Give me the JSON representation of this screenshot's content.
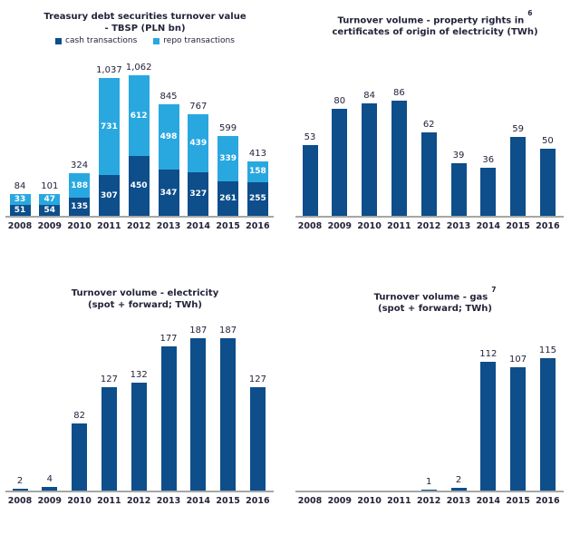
{
  "colors": {
    "dark_blue": "#0d4e8b",
    "light_blue": "#29a8e0",
    "axis_line": "#a6a6a6",
    "text": "#23233a"
  },
  "chart_data": [
    {
      "type": "bar",
      "stacked": true,
      "title_lines": [
        "Treasury debt securities turnover value",
        "- TBSP (PLN bn)"
      ],
      "footnote": "",
      "legend_position": "top",
      "grid": false,
      "categories": [
        "2008",
        "2009",
        "2010",
        "2011",
        "2012",
        "2013",
        "2014",
        "2015",
        "2016"
      ],
      "series": [
        {
          "name": "cash transactions",
          "color_key": "dark_blue",
          "values": [
            51,
            54,
            135,
            307,
            450,
            347,
            327,
            261,
            255
          ],
          "labels": [
            "51",
            "54",
            "135",
            "307",
            "450",
            "347",
            "327",
            "261",
            "255"
          ]
        },
        {
          "name": "repo transactions",
          "color_key": "light_blue",
          "values": [
            33,
            47,
            188,
            731,
            612,
            498,
            439,
            339,
            158
          ],
          "labels": [
            "33",
            "47",
            "188",
            "731",
            "612",
            "498",
            "439",
            "339",
            "158"
          ]
        }
      ],
      "totals": [
        84,
        101,
        324,
        1037,
        1062,
        845,
        767,
        599,
        413
      ],
      "total_labels": [
        "84",
        "101",
        "324",
        "1,037",
        "1,062",
        "845",
        "767",
        "599",
        "413"
      ],
      "ylim": [
        0,
        1100
      ],
      "xlabel": "",
      "ylabel": ""
    },
    {
      "type": "bar",
      "stacked": false,
      "title_lines": [
        "Turnover volume - property rights in",
        "certificates of origin of electricity (TWh)"
      ],
      "footnote": "6",
      "grid": false,
      "categories": [
        "2008",
        "2009",
        "2010",
        "2011",
        "2012",
        "2013",
        "2014",
        "2015",
        "2016"
      ],
      "values": [
        53,
        80,
        84,
        86,
        62,
        39,
        36,
        59,
        50
      ],
      "value_labels": [
        "53",
        "80",
        "84",
        "86",
        "62",
        "39",
        "36",
        "59",
        "50"
      ],
      "ylim": [
        0,
        100
      ],
      "xlabel": "",
      "ylabel": ""
    },
    {
      "type": "bar",
      "stacked": false,
      "title_lines": [
        "Turnover volume - electricity",
        "(spot + forward; TWh)"
      ],
      "footnote": "",
      "grid": false,
      "categories": [
        "2008",
        "2009",
        "2010",
        "2011",
        "2012",
        "2013",
        "2014",
        "2015",
        "2016"
      ],
      "values": [
        2,
        4,
        82,
        127,
        132,
        177,
        187,
        187,
        127
      ],
      "value_labels": [
        "2",
        "4",
        "82",
        "127",
        "132",
        "177",
        "187",
        "187",
        "127"
      ],
      "ylim": [
        0,
        200
      ],
      "xlabel": "",
      "ylabel": ""
    },
    {
      "type": "bar",
      "stacked": false,
      "title_lines": [
        "Turnover volume - gas",
        "(spot + forward; TWh)"
      ],
      "footnote": "7",
      "grid": false,
      "categories": [
        "2008",
        "2009",
        "2010",
        "2011",
        "2012",
        "2013",
        "2014",
        "2015",
        "2016"
      ],
      "values": [
        0,
        0,
        0,
        0,
        1,
        2,
        112,
        107,
        115
      ],
      "value_labels": [
        "",
        "",
        "",
        "",
        "1",
        "2",
        "112",
        "107",
        "115"
      ],
      "ylim": [
        0,
        130
      ],
      "xlabel": "",
      "ylabel": ""
    }
  ]
}
